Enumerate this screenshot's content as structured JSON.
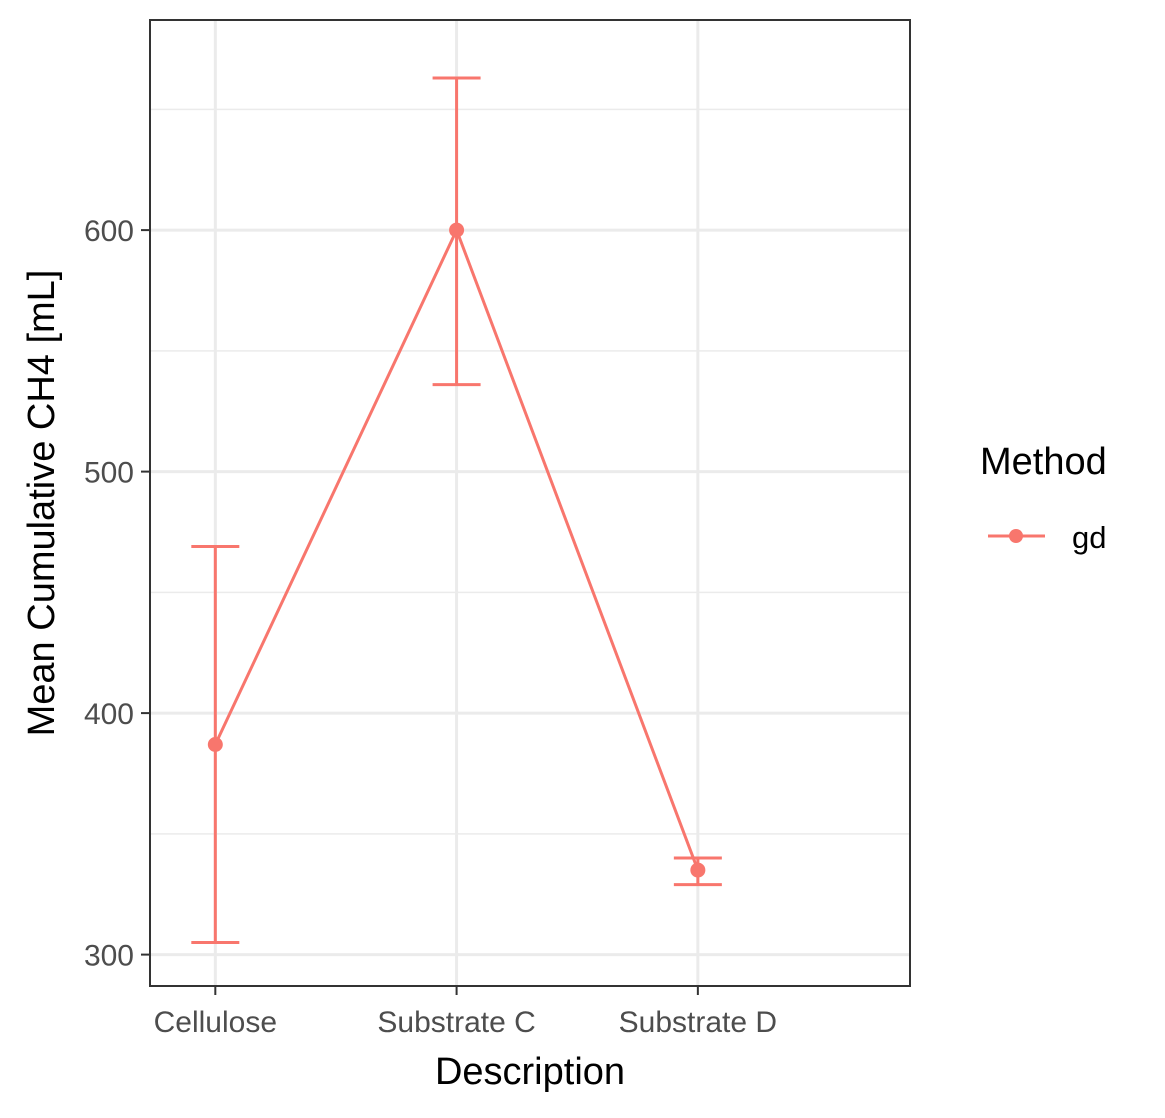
{
  "chart_data": {
    "type": "line",
    "title": "",
    "xlabel": "Description",
    "ylabel": "Mean Cumulative CH4 [mL]",
    "categories": [
      "Cellulose",
      "Substrate C",
      "Substrate D"
    ],
    "ylim": [
      287,
      687
    ],
    "yticks": [
      300,
      400,
      500,
      600
    ],
    "ytick_labels": [
      "300",
      "400",
      "500",
      "600"
    ],
    "grid": true,
    "legend": {
      "title": "Method",
      "position": "right",
      "entries": [
        {
          "label": "gd",
          "color": "#F8766D"
        }
      ]
    },
    "series": [
      {
        "name": "gd",
        "color": "#F8766D",
        "values": [
          387,
          600,
          335
        ],
        "error_low": [
          305,
          536,
          329
        ],
        "error_high": [
          469,
          663,
          340
        ]
      }
    ]
  }
}
